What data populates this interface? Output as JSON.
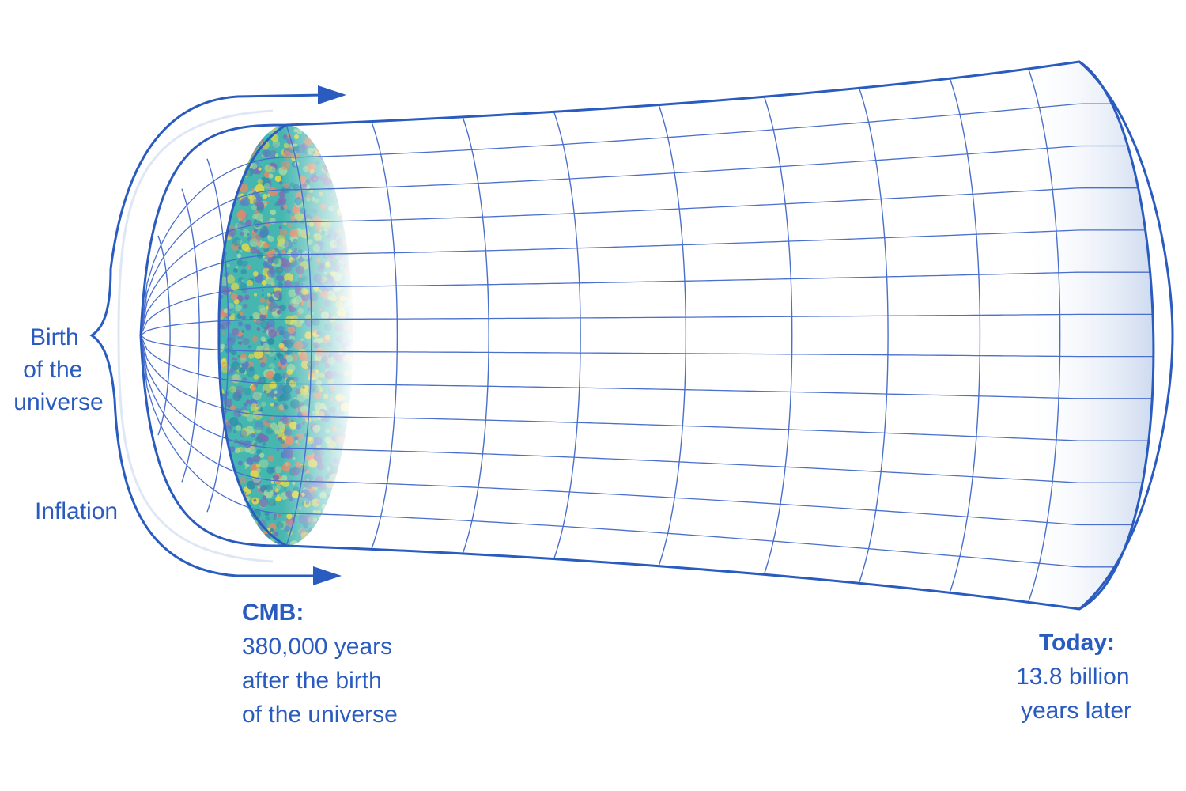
{
  "labels": {
    "birth": [
      "Birth",
      "of the",
      "universe"
    ],
    "inflation": "Inflation",
    "cmb_heading": "CMB:",
    "cmb_body": [
      "380,000 years",
      "after the birth",
      "of the universe"
    ],
    "today_heading": "Today:",
    "today_body": [
      "13.8 billion",
      "years later"
    ]
  },
  "colors": {
    "line": "#2a5bbf",
    "grid": "#4a6fcc",
    "fade": "#c9d6ef",
    "cmb_base": "#45b6b0",
    "cmb_yellow": "#e3d74a",
    "cmb_purple": "#7a6fb3"
  }
}
